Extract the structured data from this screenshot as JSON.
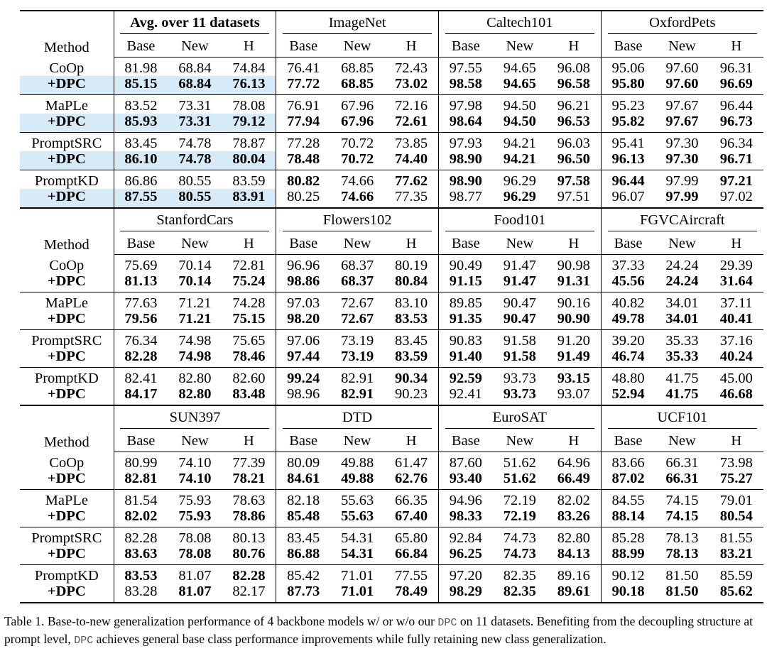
{
  "columns": {
    "base": "Base",
    "new": "New",
    "h": "H",
    "method": "Method"
  },
  "sections": [
    {
      "groups": [
        "Avg. over 11 datasets",
        "ImageNet",
        "Caltech101",
        "OxfordPets"
      ],
      "rows": [
        {
          "method": "CoOp",
          "vals": [
            "81.98",
            "68.84",
            "74.84",
            "76.41",
            "68.85",
            "72.43",
            "97.55",
            "94.65",
            "96.08",
            "95.06",
            "97.60",
            "96.31"
          ],
          "bold": [
            0,
            0,
            0,
            0,
            0,
            0,
            0,
            0,
            0,
            0,
            0,
            0
          ]
        },
        {
          "method": "+DPC",
          "vals": [
            "85.15",
            "68.84",
            "76.13",
            "77.72",
            "68.85",
            "73.02",
            "98.58",
            "94.65",
            "96.58",
            "95.80",
            "97.60",
            "96.69"
          ],
          "bold": [
            1,
            1,
            1,
            1,
            1,
            1,
            1,
            1,
            1,
            1,
            1,
            1
          ]
        },
        {
          "method": "MaPLe",
          "vals": [
            "83.52",
            "73.31",
            "78.08",
            "76.91",
            "67.96",
            "72.16",
            "97.98",
            "94.50",
            "96.21",
            "95.23",
            "97.67",
            "96.44"
          ],
          "bold": [
            0,
            0,
            0,
            0,
            0,
            0,
            0,
            0,
            0,
            0,
            0,
            0
          ]
        },
        {
          "method": "+DPC",
          "vals": [
            "85.93",
            "73.31",
            "79.12",
            "77.94",
            "67.96",
            "72.61",
            "98.64",
            "94.50",
            "96.53",
            "95.82",
            "97.67",
            "96.73"
          ],
          "bold": [
            1,
            1,
            1,
            1,
            1,
            1,
            1,
            1,
            1,
            1,
            1,
            1
          ]
        },
        {
          "method": "PromptSRC",
          "vals": [
            "83.45",
            "74.78",
            "78.87",
            "77.28",
            "70.72",
            "73.85",
            "97.93",
            "94.21",
            "96.03",
            "95.41",
            "97.30",
            "96.34"
          ],
          "bold": [
            0,
            0,
            0,
            0,
            0,
            0,
            0,
            0,
            0,
            0,
            0,
            0
          ]
        },
        {
          "method": "+DPC",
          "vals": [
            "86.10",
            "74.78",
            "80.04",
            "78.48",
            "70.72",
            "74.40",
            "98.90",
            "94.21",
            "96.50",
            "96.13",
            "97.30",
            "96.71"
          ],
          "bold": [
            1,
            1,
            1,
            1,
            1,
            1,
            1,
            1,
            1,
            1,
            1,
            1
          ]
        },
        {
          "method": "PromptKD",
          "vals": [
            "86.86",
            "80.55",
            "83.59",
            "80.82",
            "74.66",
            "77.62",
            "98.90",
            "96.29",
            "97.58",
            "96.44",
            "97.99",
            "97.21"
          ],
          "bold": [
            0,
            0,
            0,
            1,
            0,
            1,
            1,
            0,
            1,
            1,
            0,
            1
          ]
        },
        {
          "method": "+DPC",
          "vals": [
            "87.55",
            "80.55",
            "83.91",
            "80.25",
            "74.66",
            "77.35",
            "98.77",
            "96.29",
            "97.51",
            "96.07",
            "97.99",
            "97.02"
          ],
          "bold": [
            1,
            1,
            1,
            0,
            1,
            0,
            0,
            1,
            0,
            0,
            1,
            0
          ]
        }
      ]
    },
    {
      "groups": [
        "StanfordCars",
        "Flowers102",
        "Food101",
        "FGVCAircraft"
      ],
      "rows": [
        {
          "method": "CoOp",
          "vals": [
            "75.69",
            "70.14",
            "72.81",
            "96.96",
            "68.37",
            "80.19",
            "90.49",
            "91.47",
            "90.98",
            "37.33",
            "24.24",
            "29.39"
          ],
          "bold": [
            0,
            0,
            0,
            0,
            0,
            0,
            0,
            0,
            0,
            0,
            0,
            0
          ]
        },
        {
          "method": "+DPC",
          "vals": [
            "81.13",
            "70.14",
            "75.24",
            "98.86",
            "68.37",
            "80.84",
            "91.15",
            "91.47",
            "91.31",
            "45.56",
            "24.24",
            "31.64"
          ],
          "bold": [
            1,
            1,
            1,
            1,
            1,
            1,
            1,
            1,
            1,
            1,
            1,
            1
          ]
        },
        {
          "method": "MaPLe",
          "vals": [
            "77.63",
            "71.21",
            "74.28",
            "97.03",
            "72.67",
            "83.10",
            "89.85",
            "90.47",
            "90.16",
            "40.82",
            "34.01",
            "37.11"
          ],
          "bold": [
            0,
            0,
            0,
            0,
            0,
            0,
            0,
            0,
            0,
            0,
            0,
            0
          ]
        },
        {
          "method": "+DPC",
          "vals": [
            "79.56",
            "71.21",
            "75.15",
            "98.20",
            "72.67",
            "83.53",
            "91.35",
            "90.47",
            "90.90",
            "49.78",
            "34.01",
            "40.41"
          ],
          "bold": [
            1,
            1,
            1,
            1,
            1,
            1,
            1,
            1,
            1,
            1,
            1,
            1
          ]
        },
        {
          "method": "PromptSRC",
          "vals": [
            "76.34",
            "74.98",
            "75.65",
            "97.06",
            "73.19",
            "83.45",
            "90.83",
            "91.58",
            "91.20",
            "39.20",
            "35.33",
            "37.16"
          ],
          "bold": [
            0,
            0,
            0,
            0,
            0,
            0,
            0,
            0,
            0,
            0,
            0,
            0
          ]
        },
        {
          "method": "+DPC",
          "vals": [
            "82.28",
            "74.98",
            "78.46",
            "97.44",
            "73.19",
            "83.59",
            "91.40",
            "91.58",
            "91.49",
            "46.74",
            "35.33",
            "40.24"
          ],
          "bold": [
            1,
            1,
            1,
            1,
            1,
            1,
            1,
            1,
            1,
            1,
            1,
            1
          ]
        },
        {
          "method": "PromptKD",
          "vals": [
            "82.41",
            "82.80",
            "82.60",
            "99.24",
            "82.91",
            "90.34",
            "92.59",
            "93.73",
            "93.15",
            "48.80",
            "41.75",
            "45.00"
          ],
          "bold": [
            0,
            0,
            0,
            1,
            0,
            1,
            1,
            0,
            1,
            0,
            0,
            0
          ]
        },
        {
          "method": "+DPC",
          "vals": [
            "84.17",
            "82.80",
            "83.48",
            "98.96",
            "82.91",
            "90.23",
            "92.41",
            "93.73",
            "93.07",
            "52.94",
            "41.75",
            "46.68"
          ],
          "bold": [
            1,
            1,
            1,
            0,
            1,
            0,
            0,
            1,
            0,
            1,
            1,
            1
          ]
        }
      ]
    },
    {
      "groups": [
        "SUN397",
        "DTD",
        "EuroSAT",
        "UCF101"
      ],
      "rows": [
        {
          "method": "CoOp",
          "vals": [
            "80.99",
            "74.10",
            "77.39",
            "80.09",
            "49.88",
            "61.47",
            "87.60",
            "51.62",
            "64.96",
            "83.66",
            "66.31",
            "73.98"
          ],
          "bold": [
            0,
            0,
            0,
            0,
            0,
            0,
            0,
            0,
            0,
            0,
            0,
            0
          ]
        },
        {
          "method": "+DPC",
          "vals": [
            "82.81",
            "74.10",
            "78.21",
            "84.61",
            "49.88",
            "62.76",
            "93.40",
            "51.62",
            "66.49",
            "87.02",
            "66.31",
            "75.27"
          ],
          "bold": [
            1,
            1,
            1,
            1,
            1,
            1,
            1,
            1,
            1,
            1,
            1,
            1
          ]
        },
        {
          "method": "MaPLe",
          "vals": [
            "81.54",
            "75.93",
            "78.63",
            "82.18",
            "55.63",
            "66.35",
            "94.96",
            "72.19",
            "82.02",
            "84.55",
            "74.15",
            "79.01"
          ],
          "bold": [
            0,
            0,
            0,
            0,
            0,
            0,
            0,
            0,
            0,
            0,
            0,
            0
          ]
        },
        {
          "method": "+DPC",
          "vals": [
            "82.02",
            "75.93",
            "78.86",
            "85.48",
            "55.63",
            "67.40",
            "98.33",
            "72.19",
            "83.26",
            "88.14",
            "74.15",
            "80.54"
          ],
          "bold": [
            1,
            1,
            1,
            1,
            1,
            1,
            1,
            1,
            1,
            1,
            1,
            1
          ]
        },
        {
          "method": "PromptSRC",
          "vals": [
            "82.28",
            "78.08",
            "80.13",
            "83.45",
            "54.31",
            "65.80",
            "92.84",
            "74.73",
            "82.80",
            "85.28",
            "78.13",
            "81.55"
          ],
          "bold": [
            0,
            0,
            0,
            0,
            0,
            0,
            0,
            0,
            0,
            0,
            0,
            0
          ]
        },
        {
          "method": "+DPC",
          "vals": [
            "83.63",
            "78.08",
            "80.76",
            "86.88",
            "54.31",
            "66.84",
            "96.25",
            "74.73",
            "84.13",
            "88.99",
            "78.13",
            "83.21"
          ],
          "bold": [
            1,
            1,
            1,
            1,
            1,
            1,
            1,
            1,
            1,
            1,
            1,
            1
          ]
        },
        {
          "method": "PromptKD",
          "vals": [
            "83.53",
            "81.07",
            "82.28",
            "85.42",
            "71.01",
            "77.55",
            "97.20",
            "82.35",
            "89.16",
            "90.12",
            "81.50",
            "85.59"
          ],
          "bold": [
            1,
            0,
            1,
            0,
            0,
            0,
            0,
            0,
            0,
            0,
            0,
            0
          ]
        },
        {
          "method": "+DPC",
          "vals": [
            "83.28",
            "81.07",
            "82.17",
            "87.73",
            "71.01",
            "78.49",
            "98.29",
            "82.35",
            "89.61",
            "90.18",
            "81.50",
            "85.62"
          ],
          "bold": [
            0,
            1,
            0,
            1,
            1,
            1,
            1,
            1,
            1,
            1,
            1,
            1
          ]
        }
      ]
    }
  ],
  "caption": {
    "p1": "Table 1. Base-to-new generalization performance of 4 backbone models w/ or w/o our ",
    "code1": "DPC",
    "p2": " on 11 datasets. Benefiting from the decoupling structure at prompt level, ",
    "code2": "DPC",
    "p3": " achieves general base class performance improvements while fully retaining new class generalization."
  }
}
